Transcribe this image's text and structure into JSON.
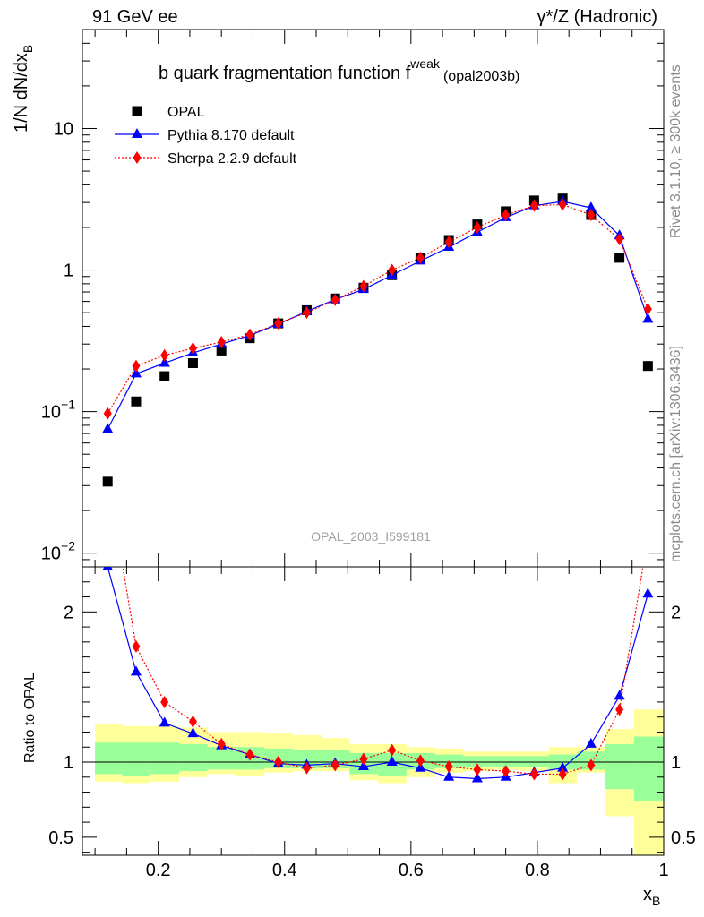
{
  "header": {
    "left": "91 GeV ee",
    "right": "γ*/Z (Hadronic)"
  },
  "side_labels": {
    "rivet": "Rivet 3.1.10, ≥ 300k events",
    "mcplots": "mcplots.cern.ch [arXiv:1306.3436]"
  },
  "chart_data": {
    "type": "scatter",
    "title": "b quark fragmentation function f",
    "title_superscript": "weak",
    "title_suffix": "(opal2003b)",
    "watermark": "OPAL_2003_I599181",
    "xlabel": "x",
    "xlabel_sub": "B",
    "ylabel": "1/N dN/dx",
    "ylabel_sub": "B",
    "xlim": [
      0.08,
      1.0
    ],
    "ylim": [
      0.008,
      50
    ],
    "yscale": "log",
    "x": [
      0.12,
      0.165,
      0.21,
      0.255,
      0.3,
      0.345,
      0.39,
      0.435,
      0.48,
      0.525,
      0.57,
      0.615,
      0.66,
      0.705,
      0.75,
      0.795,
      0.84,
      0.885,
      0.93,
      0.975
    ],
    "series": [
      {
        "name": "OPAL",
        "marker": "square",
        "color": "#000000",
        "values": [
          0.032,
          0.118,
          0.178,
          0.22,
          0.27,
          0.33,
          0.42,
          0.52,
          0.63,
          0.75,
          0.92,
          1.22,
          1.63,
          2.1,
          2.6,
          3.1,
          3.2,
          2.45,
          1.22,
          0.21
        ]
      },
      {
        "name": "Pythia 8.170 default",
        "marker": "triangle",
        "color": "#0000ff",
        "line": "solid",
        "values": [
          0.075,
          0.185,
          0.22,
          0.26,
          0.3,
          0.345,
          0.415,
          0.51,
          0.62,
          0.73,
          0.92,
          1.16,
          1.45,
          1.85,
          2.35,
          2.85,
          3.05,
          2.75,
          1.75,
          0.45
        ]
      },
      {
        "name": "Sherpa 2.2.9 default",
        "marker": "diamond",
        "color": "#ff0000",
        "line": "dotted",
        "values": [
          0.097,
          0.21,
          0.25,
          0.28,
          0.31,
          0.35,
          0.42,
          0.5,
          0.615,
          0.77,
          1.0,
          1.22,
          1.58,
          2.0,
          2.45,
          2.85,
          2.9,
          2.45,
          1.65,
          0.53
        ]
      }
    ],
    "ratio": {
      "ylabel": "Ratio to OPAL",
      "ylim": [
        0.38,
        2.3
      ],
      "reference": 1,
      "band_edges": [
        0.1,
        0.143,
        0.188,
        0.233,
        0.278,
        0.323,
        0.368,
        0.413,
        0.458,
        0.503,
        0.548,
        0.593,
        0.638,
        0.683,
        0.728,
        0.773,
        0.818,
        0.863,
        0.908,
        0.953,
        1.0
      ],
      "inner_band": [
        [
          0.92,
          1.13
        ],
        [
          0.91,
          1.13
        ],
        [
          0.92,
          1.13
        ],
        [
          0.94,
          1.12
        ],
        [
          0.95,
          1.1
        ],
        [
          0.95,
          1.1
        ],
        [
          0.96,
          1.09
        ],
        [
          0.96,
          1.08
        ],
        [
          0.96,
          1.08
        ],
        [
          0.92,
          1.06
        ],
        [
          0.91,
          1.06
        ],
        [
          0.95,
          1.06
        ],
        [
          0.96,
          1.05
        ],
        [
          0.97,
          1.04
        ],
        [
          0.97,
          1.04
        ],
        [
          0.97,
          1.04
        ],
        [
          0.95,
          1.05
        ],
        [
          0.95,
          1.07
        ],
        [
          0.82,
          1.12
        ],
        [
          0.74,
          1.17
        ]
      ],
      "outer_band": [
        [
          0.87,
          1.25
        ],
        [
          0.86,
          1.24
        ],
        [
          0.87,
          1.24
        ],
        [
          0.9,
          1.23
        ],
        [
          0.92,
          1.2
        ],
        [
          0.91,
          1.2
        ],
        [
          0.93,
          1.19
        ],
        [
          0.94,
          1.18
        ],
        [
          0.94,
          1.16
        ],
        [
          0.88,
          1.12
        ],
        [
          0.86,
          1.12
        ],
        [
          0.9,
          1.1
        ],
        [
          0.93,
          1.09
        ],
        [
          0.94,
          1.07
        ],
        [
          0.95,
          1.07
        ],
        [
          0.94,
          1.07
        ],
        [
          0.86,
          1.1
        ],
        [
          0.93,
          1.1
        ],
        [
          0.64,
          1.22
        ],
        [
          0.38,
          1.35
        ]
      ],
      "pythia": [
        2.3,
        1.6,
        1.26,
        1.19,
        1.11,
        1.05,
        0.99,
        0.98,
        0.99,
        0.97,
        1.0,
        0.96,
        0.9,
        0.89,
        0.9,
        0.93,
        0.96,
        1.12,
        1.44,
        2.12
      ],
      "sherpa": [
        2.9,
        1.77,
        1.4,
        1.27,
        1.12,
        1.05,
        1.0,
        0.96,
        0.98,
        1.02,
        1.08,
        1.01,
        0.97,
        0.95,
        0.94,
        0.92,
        0.92,
        0.98,
        1.35,
        2.5
      ]
    }
  }
}
